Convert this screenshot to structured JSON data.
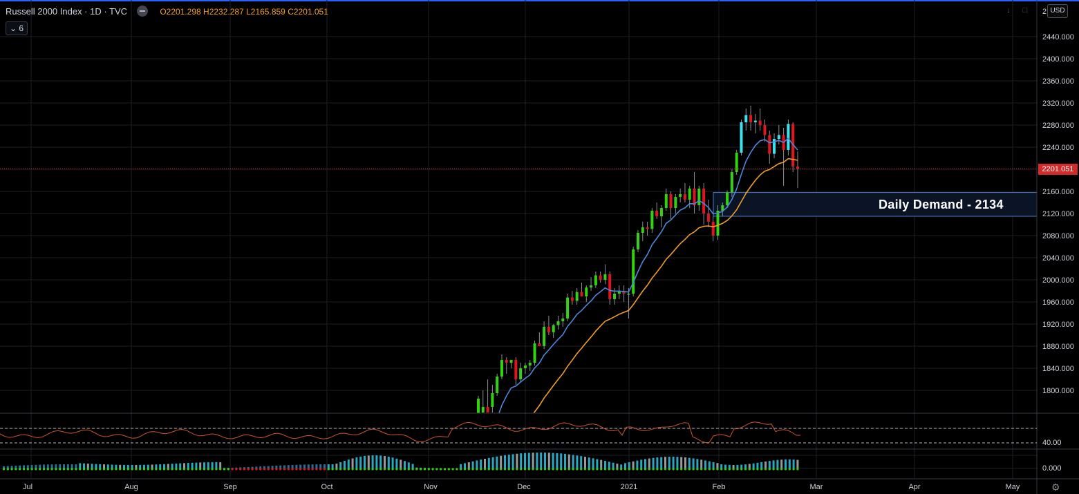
{
  "legend": {
    "symbol": "Russell 2000 Index · 1D · TVC",
    "open": "O2201.298",
    "high": "H2232.287",
    "low": "L2165.859",
    "close": "C2201.051",
    "collapsed_count": "6"
  },
  "currency": "USD",
  "price_axis": {
    "top_label": "2     ",
    "labels": [
      "2440.000",
      "2400.000",
      "2360.000",
      "2320.000",
      "2280.000",
      "2240.000",
      "2160.000",
      "2120.000",
      "2080.000",
      "2040.000",
      "2000.000",
      "1960.000",
      "1920.000",
      "1880.000",
      "1840.000",
      "1800.000"
    ],
    "indicator_labels": [
      "40.00",
      "0.000"
    ],
    "last_price": "2201.051"
  },
  "time_axis": [
    "Jul",
    "Aug",
    "Sep",
    "Oct",
    "Nov",
    "Dec",
    "2021",
    "Feb",
    "Mar",
    "Apr",
    "May"
  ],
  "annotation": {
    "text": "Daily Demand - 2134"
  },
  "colors": {
    "up": "#31d20f",
    "down": "#e0161f",
    "up_cyan": "#3be2ef",
    "ema_fast": "#4f86dd",
    "ema_slow": "#f29d2a",
    "rsi": "#d3532d",
    "grid": "#1e2025",
    "zone_border": "#4a7dd1",
    "price_line": "#d42a2a"
  },
  "icons": [
    "eye-icon",
    "chevron-down-icon",
    "gear-icon",
    "arrow-down-icon",
    "square-icon"
  ],
  "chart_data": {
    "type": "candlestick",
    "price_ticks": [
      1800,
      1840,
      1880,
      1920,
      1960,
      2000,
      2040,
      2080,
      2120,
      2160,
      2200,
      2240,
      2280,
      2320,
      2360,
      2400,
      2440
    ],
    "last_price": 2201.051,
    "demand_zone": [
      2115,
      2158
    ],
    "demand_level": 2134,
    "candles": [
      {
        "o": 1730,
        "h": 1790,
        "l": 1720,
        "c": 1785
      },
      {
        "o": 1760,
        "h": 1800,
        "l": 1750,
        "c": 1770
      },
      {
        "o": 1770,
        "h": 1820,
        "l": 1760,
        "c": 1760
      },
      {
        "o": 1770,
        "h": 1810,
        "l": 1760,
        "c": 1795
      },
      {
        "o": 1795,
        "h": 1830,
        "l": 1790,
        "c": 1825
      },
      {
        "o": 1825,
        "h": 1865,
        "l": 1820,
        "c": 1855
      },
      {
        "o": 1855,
        "h": 1860,
        "l": 1830,
        "c": 1850
      },
      {
        "o": 1850,
        "h": 1855,
        "l": 1840,
        "c": 1855
      },
      {
        "o": 1855,
        "h": 1860,
        "l": 1810,
        "c": 1820
      },
      {
        "o": 1820,
        "h": 1850,
        "l": 1815,
        "c": 1840
      },
      {
        "o": 1840,
        "h": 1850,
        "l": 1830,
        "c": 1845
      },
      {
        "o": 1845,
        "h": 1855,
        "l": 1835,
        "c": 1850
      },
      {
        "o": 1850,
        "h": 1890,
        "l": 1845,
        "c": 1885
      },
      {
        "o": 1885,
        "h": 1905,
        "l": 1880,
        "c": 1880
      },
      {
        "o": 1880,
        "h": 1925,
        "l": 1875,
        "c": 1915
      },
      {
        "o": 1915,
        "h": 1935,
        "l": 1900,
        "c": 1905
      },
      {
        "o": 1905,
        "h": 1920,
        "l": 1895,
        "c": 1918
      },
      {
        "o": 1918,
        "h": 1935,
        "l": 1910,
        "c": 1925
      },
      {
        "o": 1925,
        "h": 1940,
        "l": 1915,
        "c": 1930
      },
      {
        "o": 1930,
        "h": 1975,
        "l": 1925,
        "c": 1968
      },
      {
        "o": 1968,
        "h": 1980,
        "l": 1955,
        "c": 1962
      },
      {
        "o": 1962,
        "h": 1985,
        "l": 1955,
        "c": 1978
      },
      {
        "o": 1978,
        "h": 1995,
        "l": 1970,
        "c": 1970
      },
      {
        "o": 1970,
        "h": 1990,
        "l": 1960,
        "c": 1986
      },
      {
        "o": 1986,
        "h": 2005,
        "l": 1980,
        "c": 1990
      },
      {
        "o": 1990,
        "h": 2015,
        "l": 1985,
        "c": 2008
      },
      {
        "o": 2008,
        "h": 2015,
        "l": 1995,
        "c": 2000
      },
      {
        "o": 2000,
        "h": 2028,
        "l": 1992,
        "c": 2010
      },
      {
        "o": 2010,
        "h": 2015,
        "l": 1955,
        "c": 1965
      },
      {
        "o": 1965,
        "h": 1985,
        "l": 1955,
        "c": 1975
      },
      {
        "o": 1975,
        "h": 1990,
        "l": 1965,
        "c": 1980
      },
      {
        "o": 1980,
        "h": 1990,
        "l": 1960,
        "c": 1975
      },
      {
        "o": 1975,
        "h": 1985,
        "l": 1930,
        "c": 1975
      },
      {
        "o": 1975,
        "h": 2060,
        "l": 1970,
        "c": 2055
      },
      {
        "o": 2055,
        "h": 2090,
        "l": 2050,
        "c": 2085
      },
      {
        "o": 2085,
        "h": 2105,
        "l": 2070,
        "c": 2095
      },
      {
        "o": 2095,
        "h": 2105,
        "l": 2080,
        "c": 2092
      },
      {
        "o": 2092,
        "h": 2130,
        "l": 2085,
        "c": 2125
      },
      {
        "o": 2125,
        "h": 2140,
        "l": 2110,
        "c": 2115
      },
      {
        "o": 2115,
        "h": 2135,
        "l": 2095,
        "c": 2130
      },
      {
        "o": 2130,
        "h": 2165,
        "l": 2125,
        "c": 2155
      },
      {
        "o": 2155,
        "h": 2160,
        "l": 2110,
        "c": 2130
      },
      {
        "o": 2130,
        "h": 2155,
        "l": 2120,
        "c": 2150
      },
      {
        "o": 2150,
        "h": 2165,
        "l": 2140,
        "c": 2155
      },
      {
        "o": 2155,
        "h": 2175,
        "l": 2140,
        "c": 2145
      },
      {
        "o": 2145,
        "h": 2170,
        "l": 2130,
        "c": 2165
      },
      {
        "o": 2165,
        "h": 2195,
        "l": 2120,
        "c": 2135
      },
      {
        "o": 2135,
        "h": 2170,
        "l": 2125,
        "c": 2165
      },
      {
        "o": 2165,
        "h": 2175,
        "l": 2100,
        "c": 2120
      },
      {
        "o": 2120,
        "h": 2145,
        "l": 2095,
        "c": 2105
      },
      {
        "o": 2105,
        "h": 2115,
        "l": 2070,
        "c": 2080
      },
      {
        "o": 2080,
        "h": 2135,
        "l": 2072,
        "c": 2125
      },
      {
        "o": 2125,
        "h": 2140,
        "l": 2115,
        "c": 2135
      },
      {
        "o": 2135,
        "h": 2162,
        "l": 2130,
        "c": 2158
      },
      {
        "o": 2158,
        "h": 2200,
        "l": 2150,
        "c": 2195
      },
      {
        "o": 2195,
        "h": 2235,
        "l": 2190,
        "c": 2230
      },
      {
        "o": 2230,
        "h": 2290,
        "l": 2225,
        "c": 2285
      },
      {
        "o": 2285,
        "h": 2310,
        "l": 2270,
        "c": 2298
      },
      {
        "o": 2298,
        "h": 2315,
        "l": 2270,
        "c": 2285
      },
      {
        "o": 2285,
        "h": 2300,
        "l": 2265,
        "c": 2288
      },
      {
        "o": 2288,
        "h": 2310,
        "l": 2270,
        "c": 2280
      },
      {
        "o": 2280,
        "h": 2290,
        "l": 2250,
        "c": 2262
      },
      {
        "o": 2262,
        "h": 2270,
        "l": 2210,
        "c": 2228
      },
      {
        "o": 2228,
        "h": 2265,
        "l": 2220,
        "c": 2255
      },
      {
        "o": 2255,
        "h": 2280,
        "l": 2245,
        "c": 2262
      },
      {
        "o": 2262,
        "h": 2275,
        "l": 2170,
        "c": 2235
      },
      {
        "o": 2235,
        "h": 2290,
        "l": 2225,
        "c": 2282
      },
      {
        "o": 2282,
        "h": 2285,
        "l": 2195,
        "c": 2205
      },
      {
        "o": 2205,
        "h": 2232,
        "l": 2166,
        "c": 2201
      }
    ]
  }
}
